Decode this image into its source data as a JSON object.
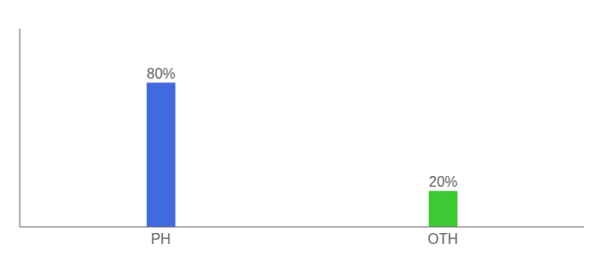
{
  "chart_data": {
    "type": "bar",
    "categories": [
      "PH",
      "OTH"
    ],
    "values": [
      80,
      20
    ],
    "colors": [
      "#4169E1",
      "#3CC934"
    ],
    "ylim": [
      0,
      110
    ],
    "tick_labels": "x",
    "data_labels": true,
    "value_labels": [
      "80%",
      "20%"
    ]
  }
}
